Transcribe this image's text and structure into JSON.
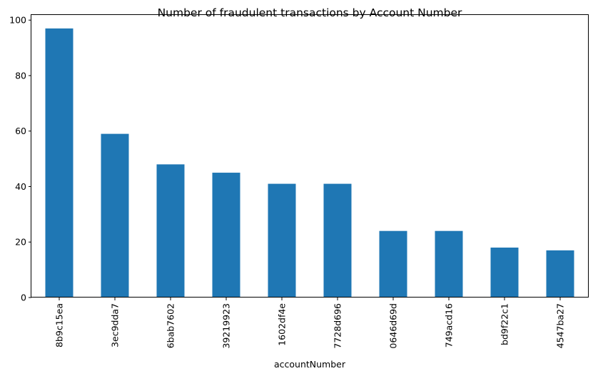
{
  "chart_data": {
    "type": "bar",
    "title": "Number of fraudulent transactions by Account Number",
    "xlabel": "accountNumber",
    "ylabel": "",
    "categories": [
      "8b9c15ea",
      "3ec9dda7",
      "6bab7602",
      "39219923",
      "1602df4e",
      "7728d696",
      "0646d69d",
      "749acd16",
      "bd9f22c1",
      "4547ba27"
    ],
    "values": [
      97,
      59,
      48,
      45,
      41,
      41,
      24,
      24,
      18,
      17
    ],
    "ylim": [
      0,
      101.85
    ],
    "yticks": [
      0,
      20,
      40,
      60,
      80,
      100
    ],
    "grid": false,
    "legend": "none",
    "bar_color": "#1f77b4"
  }
}
